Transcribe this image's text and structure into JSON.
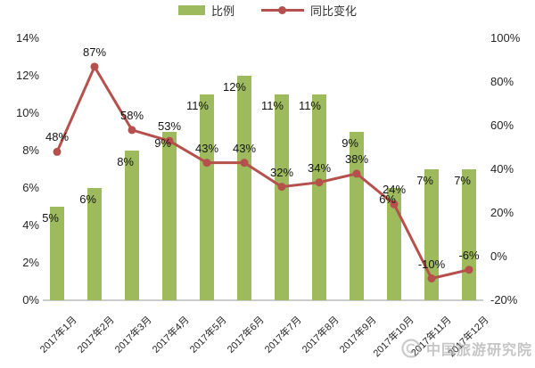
{
  "legend": {
    "bar_label": "比例",
    "line_label": "同比变化"
  },
  "axes": {
    "left_ticks": [
      "14%",
      "12%",
      "10%",
      "8%",
      "6%",
      "4%",
      "2%",
      "0%"
    ],
    "right_ticks": [
      "100%",
      "80%",
      "60%",
      "40%",
      "20%",
      "0%",
      "-20%"
    ]
  },
  "watermark": {
    "text": "中国旅游研究院"
  },
  "colors": {
    "bar": "#9dba5c",
    "line": "#b5504c",
    "axis_text": "#262626",
    "baseline": "#cccccc",
    "label_text": "#141414",
    "watermark": "#a0a0a0"
  },
  "chart_data": {
    "type": "bar+line",
    "categories": [
      "2017年1月",
      "2017年2月",
      "2017年3月",
      "2017年4月",
      "2017年5月",
      "2017年6月",
      "2017年7月",
      "2017年8月",
      "2017年9月",
      "2017年10月",
      "2017年11月",
      "2017年12月"
    ],
    "series": [
      {
        "name": "比例",
        "chart_type": "bar",
        "y_axis": "left",
        "color": "#9dba5c",
        "values": [
          5,
          6,
          8,
          9,
          11,
          12,
          11,
          11,
          9,
          6,
          7,
          7
        ]
      },
      {
        "name": "同比变化",
        "chart_type": "line",
        "y_axis": "right",
        "color": "#b5504c",
        "values": [
          48,
          87,
          58,
          53,
          43,
          43,
          32,
          34,
          38,
          24,
          -10,
          -6
        ]
      }
    ],
    "unit": "%",
    "left_ylim": [
      0,
      14
    ],
    "right_ylim": [
      -20,
      100
    ],
    "grid": false,
    "legend_position": "top-center",
    "title": ""
  }
}
